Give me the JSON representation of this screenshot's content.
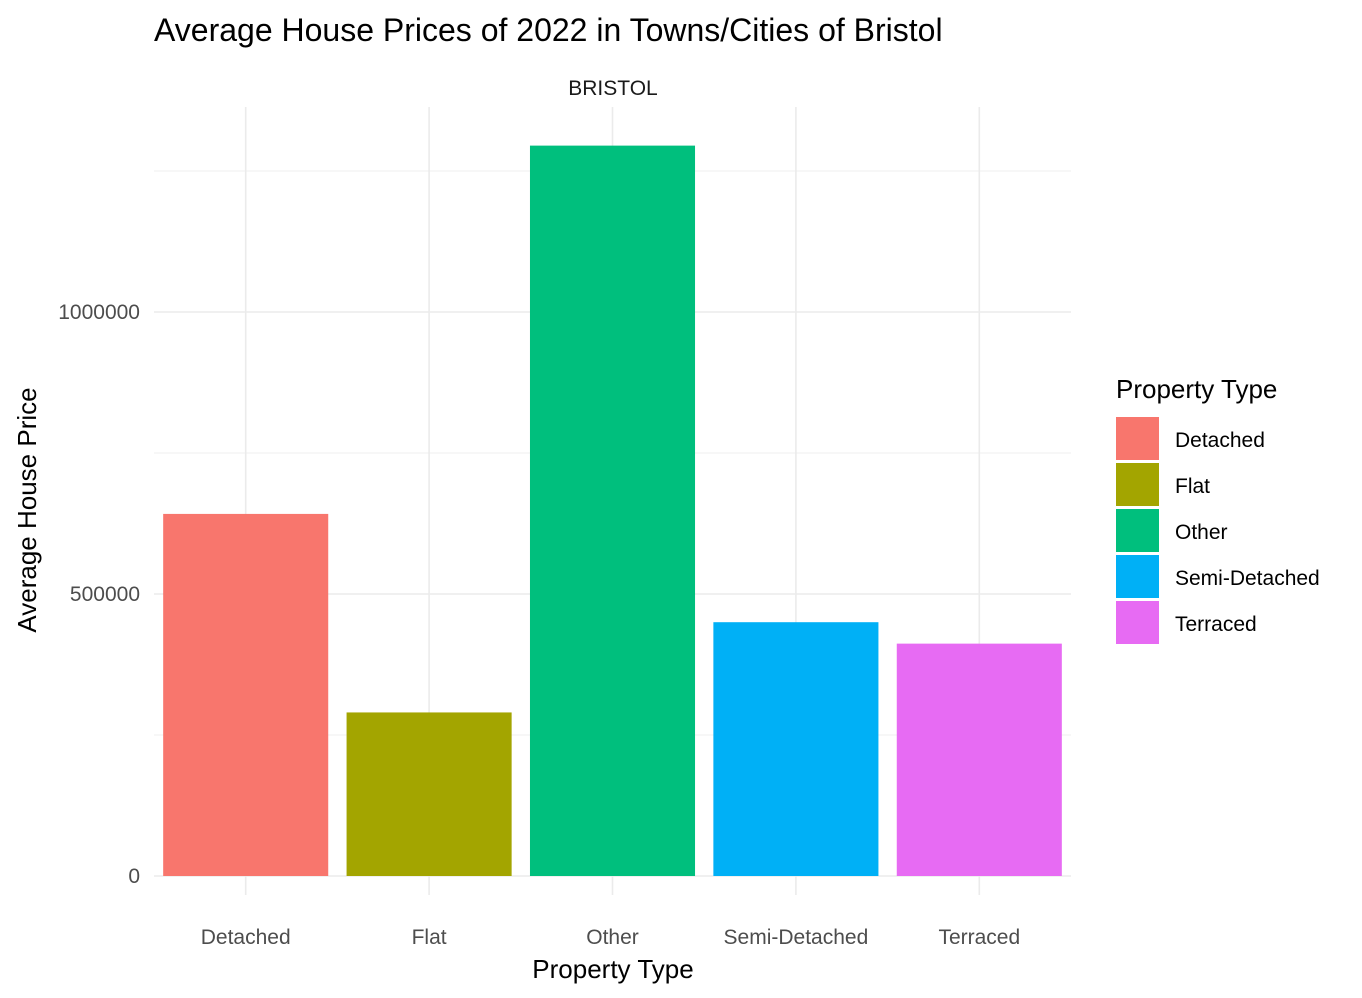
{
  "chart_data": {
    "type": "bar",
    "title": "Average House Prices of 2022 in Towns/Cities of Bristol",
    "facet_label": "BRISTOL",
    "xlabel": "Property Type",
    "ylabel": "Average House Price",
    "categories": [
      "Detached",
      "Flat",
      "Other",
      "Semi-Detached",
      "Terraced"
    ],
    "values": [
      642000,
      290000,
      1295000,
      450000,
      412000
    ],
    "colors": [
      "#F8766D",
      "#A3A500",
      "#00BF7D",
      "#00B0F6",
      "#E76BF3"
    ],
    "y_ticks": [
      0,
      500000,
      1000000
    ],
    "y_tick_labels": [
      "0",
      "500000",
      "1000000"
    ],
    "ylim": [
      0,
      1360000
    ],
    "grid": true,
    "legend": {
      "title": "Property Type",
      "position": "right",
      "entries": [
        "Detached",
        "Flat",
        "Other",
        "Semi-Detached",
        "Terraced"
      ]
    }
  }
}
